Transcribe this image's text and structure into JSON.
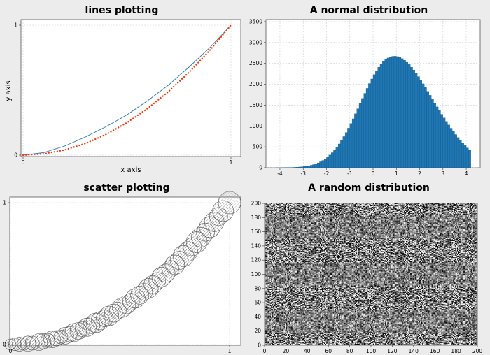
{
  "chart_data": [
    {
      "type": "line",
      "title": "lines plotting",
      "xlabel": "x axis",
      "ylabel": "y axis",
      "xlim": [
        0,
        1
      ],
      "ylim": [
        0,
        1
      ],
      "xticks": [
        "0",
        "1"
      ],
      "yticks": [
        "0",
        "1"
      ],
      "grid": true,
      "series": [
        {
          "style": "solid",
          "color": "#1f77b4",
          "x": [
            0,
            0.1,
            0.2,
            0.3,
            0.4,
            0.5,
            0.6,
            0.7,
            0.8,
            0.9,
            1.0
          ],
          "y": [
            0,
            0.02,
            0.07,
            0.14,
            0.22,
            0.31,
            0.42,
            0.54,
            0.68,
            0.83,
            1.0
          ]
        },
        {
          "style": "dotted",
          "color": "#ff3300",
          "x": [
            0,
            0.1,
            0.2,
            0.3,
            0.4,
            0.5,
            0.6,
            0.7,
            0.8,
            0.9,
            1.0
          ],
          "y": [
            0,
            0.01,
            0.04,
            0.09,
            0.16,
            0.25,
            0.36,
            0.49,
            0.64,
            0.81,
            1.0
          ]
        }
      ]
    },
    {
      "type": "bar",
      "title": "A normal distribution",
      "xlim": [
        -4.6,
        4.6
      ],
      "ylim": [
        0,
        3550
      ],
      "xticks": [
        "-4",
        "-3",
        "-2",
        "-1",
        "0",
        "1",
        "2",
        "3",
        "4"
      ],
      "yticks": [
        "0",
        "500",
        "1000",
        "1500",
        "2000",
        "2500",
        "3000",
        "3500"
      ],
      "grid": true,
      "bar_color": "#1f77b4",
      "bins": {
        "start": -4.2,
        "end": 4.2,
        "count": 84
      },
      "values": [
        1,
        1,
        2,
        2,
        3,
        4,
        5,
        7,
        10,
        13,
        17,
        22,
        29,
        37,
        47,
        59,
        75,
        94,
        116,
        143,
        175,
        212,
        255,
        304,
        360,
        423,
        493,
        570,
        654,
        746,
        844,
        948,
        1058,
        1173,
        1292,
        1413,
        1536,
        1660,
        1782,
        1902,
        2017,
        2127,
        2230,
        2324,
        2408,
        2480,
        2542,
        2592,
        2630,
        2656,
        2670,
        2673,
        2664,
        2645,
        2615,
        2576,
        2528,
        2473,
        2409,
        2339,
        2263,
        2183,
        2098,
        2011,
        1921,
        1829,
        1736,
        1643,
        1551,
        1459,
        1368,
        1280,
        1193,
        1108,
        1026,
        946,
        869,
        795,
        724,
        657,
        593,
        532,
        475,
        421
      ]
    },
    {
      "type": "scatter",
      "title": "scatter plotting",
      "xlim": [
        0,
        1
      ],
      "ylim": [
        0,
        1
      ],
      "xticks": [
        "0",
        "1"
      ],
      "yticks": [
        "0",
        "1"
      ],
      "grid": true,
      "marker": "hatched-circle",
      "points": [
        {
          "x": 0.0,
          "y": 0.0,
          "s": 8
        },
        {
          "x": 0.02,
          "y": 0.001,
          "s": 9
        },
        {
          "x": 0.04,
          "y": 0.002,
          "s": 10
        },
        {
          "x": 0.06,
          "y": 0.004,
          "s": 9
        },
        {
          "x": 0.08,
          "y": 0.006,
          "s": 11
        },
        {
          "x": 0.1,
          "y": 0.01,
          "s": 10
        },
        {
          "x": 0.13,
          "y": 0.017,
          "s": 12
        },
        {
          "x": 0.15,
          "y": 0.023,
          "s": 11
        },
        {
          "x": 0.17,
          "y": 0.029,
          "s": 10
        },
        {
          "x": 0.19,
          "y": 0.036,
          "s": 12
        },
        {
          "x": 0.21,
          "y": 0.044,
          "s": 11
        },
        {
          "x": 0.23,
          "y": 0.053,
          "s": 10
        },
        {
          "x": 0.25,
          "y": 0.062,
          "s": 12
        },
        {
          "x": 0.27,
          "y": 0.073,
          "s": 11
        },
        {
          "x": 0.29,
          "y": 0.084,
          "s": 13
        },
        {
          "x": 0.31,
          "y": 0.096,
          "s": 12
        },
        {
          "x": 0.33,
          "y": 0.109,
          "s": 11
        },
        {
          "x": 0.35,
          "y": 0.122,
          "s": 13
        },
        {
          "x": 0.37,
          "y": 0.137,
          "s": 12
        },
        {
          "x": 0.39,
          "y": 0.152,
          "s": 14
        },
        {
          "x": 0.41,
          "y": 0.168,
          "s": 13
        },
        {
          "x": 0.43,
          "y": 0.185,
          "s": 12
        },
        {
          "x": 0.45,
          "y": 0.202,
          "s": 14
        },
        {
          "x": 0.47,
          "y": 0.221,
          "s": 13
        },
        {
          "x": 0.49,
          "y": 0.24,
          "s": 12
        },
        {
          "x": 0.51,
          "y": 0.26,
          "s": 14
        },
        {
          "x": 0.53,
          "y": 0.281,
          "s": 13
        },
        {
          "x": 0.55,
          "y": 0.302,
          "s": 12
        },
        {
          "x": 0.57,
          "y": 0.325,
          "s": 14
        },
        {
          "x": 0.59,
          "y": 0.348,
          "s": 13
        },
        {
          "x": 0.61,
          "y": 0.372,
          "s": 12
        },
        {
          "x": 0.63,
          "y": 0.397,
          "s": 14
        },
        {
          "x": 0.65,
          "y": 0.422,
          "s": 13
        },
        {
          "x": 0.67,
          "y": 0.449,
          "s": 12
        },
        {
          "x": 0.69,
          "y": 0.476,
          "s": 14
        },
        {
          "x": 0.71,
          "y": 0.504,
          "s": 13
        },
        {
          "x": 0.73,
          "y": 0.533,
          "s": 12
        },
        {
          "x": 0.75,
          "y": 0.562,
          "s": 14
        },
        {
          "x": 0.77,
          "y": 0.593,
          "s": 13
        },
        {
          "x": 0.79,
          "y": 0.624,
          "s": 15
        },
        {
          "x": 0.81,
          "y": 0.656,
          "s": 14
        },
        {
          "x": 0.83,
          "y": 0.689,
          "s": 13
        },
        {
          "x": 0.85,
          "y": 0.722,
          "s": 15
        },
        {
          "x": 0.87,
          "y": 0.757,
          "s": 14
        },
        {
          "x": 0.89,
          "y": 0.792,
          "s": 13
        },
        {
          "x": 0.91,
          "y": 0.828,
          "s": 15
        },
        {
          "x": 0.93,
          "y": 0.865,
          "s": 14
        },
        {
          "x": 0.95,
          "y": 0.902,
          "s": 13
        },
        {
          "x": 0.97,
          "y": 0.941,
          "s": 15
        },
        {
          "x": 1.0,
          "y": 1.0,
          "s": 16
        }
      ]
    },
    {
      "type": "heatmap",
      "title": "A random distribution",
      "colormap": "gray",
      "xlim": [
        0,
        200
      ],
      "ylim": [
        0,
        200
      ],
      "xticks": [
        "0",
        "20",
        "40",
        "60",
        "80",
        "100",
        "120",
        "140",
        "160",
        "180",
        "200"
      ],
      "yticks": [
        "0",
        "20",
        "40",
        "60",
        "80",
        "100",
        "120",
        "140",
        "160",
        "180",
        "200"
      ],
      "grid": false,
      "value_range": [
        0,
        1
      ],
      "cells": "200x200 uniform random values"
    }
  ]
}
